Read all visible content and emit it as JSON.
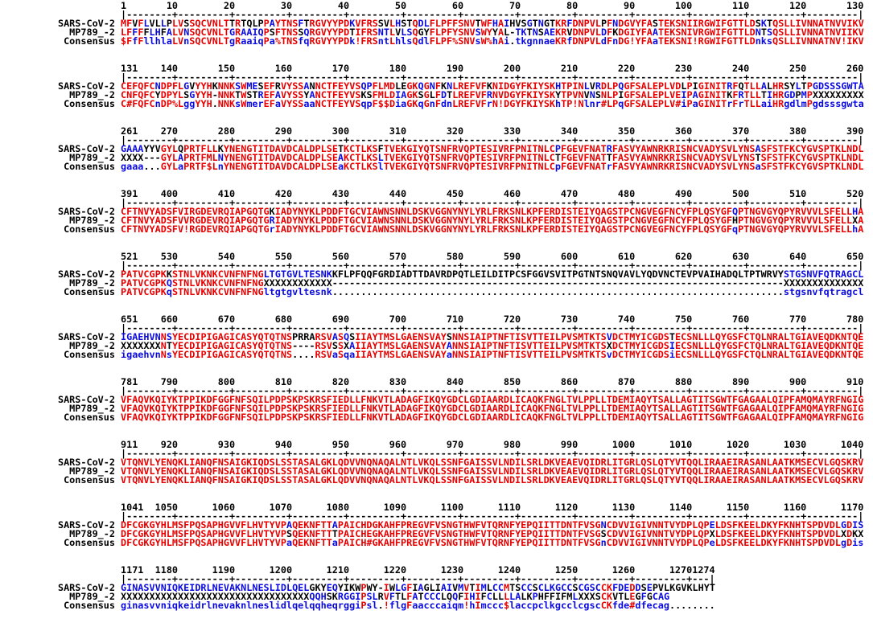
{
  "colors": {
    "high_consensus": "#e80000",
    "low_consensus": "#0a0ae0",
    "neutral": "#000000",
    "background": "#ffffff"
  },
  "labels": {
    "sars": "SARS-CoV-2",
    "mp789": "MP789_-2",
    "consensus": "Consensus"
  },
  "alignment": {
    "blocks": [
      {
        "start": 1,
        "end": 130,
        "sars": "MFVFLVLLPLVSSQCVNLTTRTQLPPAYTNSFTRGVYYPDKVFRSSVLHSTQDLFLPFFSNVTWFHAIHVSGTNGTKRFDNPVLPFNDGVYFASTEKSNIIRGWIFGTTLDSKTQSLLIVNNATNVVIKV",
        "mp789": "LFFFFLHFALVNSQCVNLTGRAAIQPSFTNSSQRGVYYPDTIFRSNTLVLSQGYFLPFYSNVSWYYAL-TKTNSAEKRVDNPVLDFKDGIYFAATEKSNIVRGWIFGTTLDNTSQSLLIVNNATNVIIKV",
        "consensus": "$FfFllhlaLVnSQCVNLTgRaaiqPa%TNSfqRGVYYPDk!FRSntLhlsQdlFLPF%SNVsW%hAi.tkgnnaeKRfDNPVLdFnDG!YFAaTEKSNI!RGWIFGTTLDnksQSLLIVNNATNV!IKV"
      },
      {
        "start": 131,
        "end": 260,
        "sars": "CEFQFCNDPFLGVYYHKNNKSWMESEFRVYSSANNCTFEYVSQPFLMDLEGKQGNFKNLREFVFKNIDGYFKIYSKHTPINLVRDLPQGFSALEPLVDLPIGINITRFQTLLALHRSYLTPGDSSSGWTA",
        "mp789": "CNFQFCYDPYLSGYYH-NNKTWSTREFAVYSSYANCTFEYVSKSFMLDIAGKSGLFDTLREFVFRNVDGYFKIYSKYTPVNVNSNLPIGFSALEPLVEIPAGINITKFRTLLTIHRGDPMPXXXXXXXXX",
        "consensus": "C#FQFCnDP%LggYYH.NNKsWmerEFaVYSSaaNCTFEYVSqpF$$DiaGKqGnFdnLREFVFrN!DGYFKIYSKhTP!Nlnr#LPqGFSALEPLV#iPaGINITrFrTLLaiHRgdlmPgdsssgwta"
      },
      {
        "start": 261,
        "end": 390,
        "sars": "GAAAYYVGYLQPRTFLLKYNENGTITDAVDCALDPLSETKCTLKSFTVEKGIYQTSNFRVQPTESIVRFPNITNLCPFGEVFNATRFASVYAWNRKRISNCVADYSVLYNSASFSTFKCYGVSPTKLNDL",
        "mp789": "XXXX---GYLAPRTFMLNYNENGTITDAVDCALDPLSEAKCTLKSLTVEKGIYQTSNFRVQPTESIVRFPNITNLCTFGEVFNATTFASVYAWNRKRISNCVADYSVLYNSTSFSTFKCYGVSPTKLNDL",
        "consensus": "gaaa...GYLaPRTF$LnYNENGTITDAVDCALDPLSEaKCTLKSlTVEKGIYQTSNFRVQPTESIVRFPNITNLCpFGEVFNATrFASVYAWNRKRISNCVADYSVLYNSaSFSTFKCYGVSPTKLNDL"
      },
      {
        "start": 391,
        "end": 520,
        "sars": "CFTNVYADSFVIRGDEVRQIAPGQTGKIADYNYKLPDDFTGCVIAWNSNNLDSKVGGNYNYLYRLFRKSNLKPFERDISTEIYQAGSTPCNGVEGFNCYFPLQSYGFQPTNGVGYQPYRVVVLSFELLHA",
        "mp789": "CFTNVYADSFVVRGDEVRQIAPGQTGRIADYNYKLPDDFTGCVIAWNSNNLDSKVGGNYNYLYRLFRKSNLKPFERDISTEIYQAGSTPCNGVEGFNCYFPLQSYGFHPTNGVGYQPYRVVVLSFELLXA",
        "consensus": "CFTNVYADSFV!RGDEVRQIAPGQTGrIADYNYKLPDDFTGCVIAWNSNNLDSKVGGNYNYLYRLFRKSNLKPFERDISTEIYQAGSTPCNGVEGFNCYFPLQSYGFqPTNGVGYQPYRVVVLSFELLhA"
      },
      {
        "start": 521,
        "end": 650,
        "sars": "PATVCGPKKSTNLVKNKCVNFNFNGLTGTGVLTESNKKFLPFQQFGRDIADTTDAVRDPQTLEILDITPCSFGGVSVITPGTNTSNQVAVLYQDVNCTEVPVAIHADQLTPTWRVYSTGSNVFQTRAGCL",
        "mp789": "PATVCGPKQSTNLVKNKCVNFNFNGXXXXXXXXXXXX-------------------------------------------------------------------------------XXXXXXXXXXXXXX",
        "consensus": "PATVCGPKqSTNLVKNKCVNFNFNGltgtgvltesnk...............................................................................stgsnvfqtragcl"
      },
      {
        "start": 651,
        "end": 780,
        "sars": "IGAEHVNNSYECDIPIGAGICASYQTQTNSPRRARSVASQSIIAYTMSLGAENSVAYSNNSIAIPTNFTISVTTEILPVSMTKTSVDCTMYICGDSTECSNLLLQYGSFCTQLNRALTGIAVEQDKNTQE",
        "mp789": "XXXXXXXNTYECDIPIGAGICASYQTQTNS----RSVSSXAIIAYTMSLGAENSVAYANNSIAIPTNFTISVTTEILPVSMTKTSXDCTMYICGDSIECSNLLLQYGSFCTQLNRALTGIAVEQDKNTQE",
        "consensus": "igaehvnNsYECDIPIGAGICASYQTQTNS....RSVaSqaIIAYTMSLGAENSVAYaNNSIAIPTNFTISVTTEILPVSMTKTSvDCTMYICGDSiECSNLLLQYGSFCTQLNRALTGIAVEQDKNTQE"
      },
      {
        "start": 781,
        "end": 910,
        "sars": "VFAQVKQIYKTPPIKDFGGFNFSQILPDPSKPSKRSFIEDLLFNKVTLADAGFIKQYGDCLGDIAARDLICAQKFNGLTVLPPLLTDEMIAQYTSALLAGTITSGWTFGAGAALQIPFAMQMAYRFNGIG",
        "mp789": "VFAQVKQIYKTPPIKDFGGFNFSQILPDPSKPSKRSFIEDLLFNKVTLADAGFIKQYGDCLGDIAARDLICAQKFNGLTVLPPLLTDEMIAQYTSALLAGTITSGWTFGAGAALQIPFAMQMAYRFNGIG",
        "consensus": "VFAQVKQIYKTPPIKDFGGFNFSQILPDPSKPSKRSFIEDLLFNKVTLADAGFIKQYGDCLGDIAARDLICAQKFNGLTVLPPLLTDEMIAQYTSALLAGTITSGWTFGAGAALQIPFAMQMAYRFNGIG"
      },
      {
        "start": 911,
        "end": 1040,
        "sars": "VTQNVLYENQKLIANQFNSAIGKIQDSLSSTASALGKLQDVVNQNAQALNTLVKQLSSNFGAISSVLNDILSRLDKVEAEVQIDRLITGRLQSLQTYVTQQLIRAAEIRASANLAATKMSECVLGQSKRV",
        "mp789": "VTQNVLYENQKLIANQFNSAIGKIQDSLSSTASALGKLQDVVNQNAQALNTLVKQLSSNFGAISSVLNDILSRLDKVEAEVQIDRLITGRLQSLQTYVTQQLIRAAEIRASANLAATKMSECVLGQSKRV",
        "consensus": "VTQNVLYENQKLIANQFNSAIGKIQDSLSSTASALGKLQDVVNQNAQALNTLVKQLSSNFGAISSVLNDILSRLDKVEAEVQIDRLITGRLQSLQTYVTQQLIRAAEIRASANLAATKMSECVLGQSKRV"
      },
      {
        "start": 1041,
        "end": 1170,
        "sars": "DFCGKGYHLMSFPQSAPHGVVFLHVTYVPAQEKNFTTAPAICHDGKAHFPREGVFVSNGTHWFVTQRNFYEPQIITTDNTFVSGNCDVVIGIVNNTVYDPLQPELDSFKEELDKYFKNHTSPDVDLGDIS",
        "mp789": "DFCGKGYHLMSFPQSAPHGVVFLHVTYVPSQEKNFTTTPAICHEGKAHFPREGVFVSNGTHWFVTQRNFYEPQIITTDNTFVSGSCDVVIGIVNNTVYDPLQPXLDSFKEELDKYFKNHTSPDVDLXDKX",
        "consensus": "DFCGKGYHLMSFPQSAPHGVVFLHVTYVPaQEKNFTTaPAICH#GKAHFPREGVFVSNGTHWFVTQRNFYEPQIITTDNTFVSGnCDVVIGIVNNTVYDPLQPeLDSFKEELDKYFKNHTSPDVDLgDis"
      },
      {
        "start": 1171,
        "end": 1274,
        "sars": "GINASVVNIQKEIDRLNEVAKNLNESLIDLQELGKYEQYIKWPWY-IWLGFIAGLIAIVMVTIMLCCMTSCCSCLKGCCSCGSCCKFDEDDSEPVLKGVKLHYT",
        "mp789": "XXXXXXXXXXXXXXXXXXXXXXXXXXXXXXXXXQQHSKRGGIPSLRVFTLFATCCCLQQFIHIFCLLLLALKPHFFIFMLXXXSCKVTLEGFGCAG        ",
        "consensus": "ginasvvniqkeidrlnevaknlneslidlqelqqheqrggiPsl.!flgFaacccaiqm!hImccc$laccpclkgcclcgscCKfde#dfecag........"
      }
    ]
  }
}
